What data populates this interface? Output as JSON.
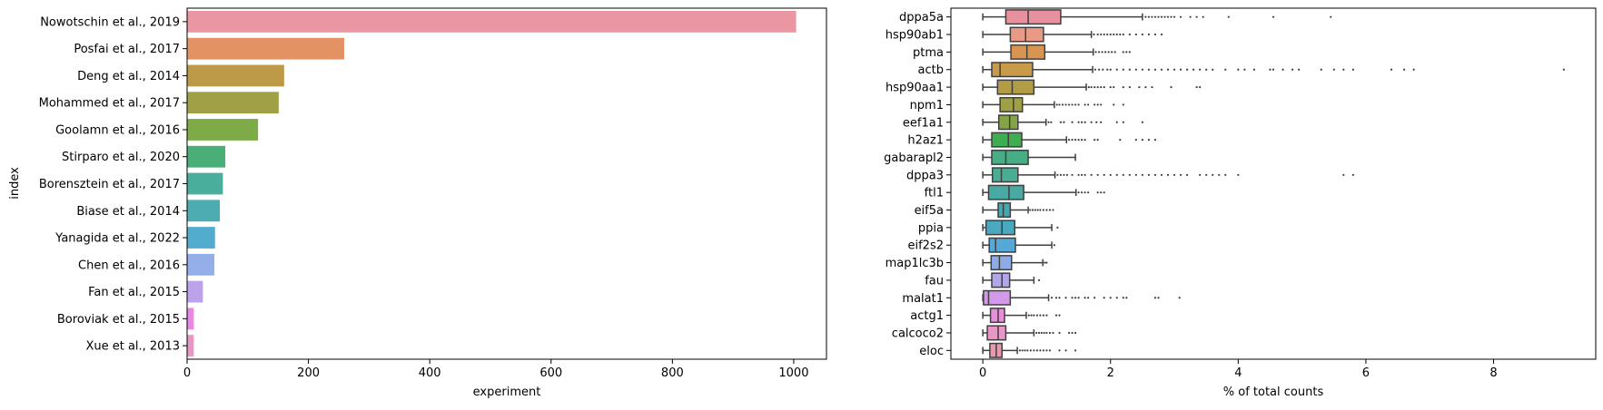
{
  "chart_data": [
    {
      "type": "bar",
      "orientation": "horizontal",
      "title": "",
      "xlabel": "experiment",
      "ylabel": "index",
      "xlim": [
        0,
        1054
      ],
      "xticks": [
        0,
        200,
        400,
        600,
        800,
        1000
      ],
      "grid": false,
      "categories": [
        "Nowotschin et al., 2019",
        "Posfai et al., 2017",
        "Deng et al., 2014",
        "Mohammed et al., 2017",
        "Goolamn et al., 2016",
        "Stirparo et al., 2020",
        "Borensztein et al., 2017",
        "Biase et al., 2014",
        "Yanagida et al., 2022",
        "Chen et al., 2016",
        "Fan et al., 2015",
        "Boroviak et al., 2015",
        "Xue et al., 2013"
      ],
      "values": [
        1004,
        259,
        160,
        151,
        117,
        63,
        59,
        54,
        46,
        45,
        26,
        11,
        11
      ],
      "colors": [
        "#ea96a3",
        "#e39363",
        "#bd9a48",
        "#a0a045",
        "#7cab48",
        "#4aae77",
        "#4aae9d",
        "#4cacb1",
        "#51acce",
        "#93aee8",
        "#bba2ea",
        "#e887e4",
        "#e797c6"
      ]
    },
    {
      "type": "boxplot",
      "orientation": "horizontal",
      "title": "",
      "xlabel": "% of total counts",
      "ylabel": "",
      "xlim": [
        -0.5,
        9.6
      ],
      "xticks": [
        0,
        2,
        4,
        6,
        8
      ],
      "grid": false,
      "categories": [
        "dppa5a",
        "hsp90ab1",
        "ptma",
        "actb",
        "hsp90aa1",
        "npm1",
        "eef1a1",
        "h2az1",
        "gabarapl2",
        "dppa3",
        "ftl1",
        "eif5a",
        "ppia",
        "eif2s2",
        "map1lc3b",
        "fau",
        "malat1",
        "actg1",
        "calcoco2",
        "eloc"
      ],
      "stats": [
        {
          "min": 0,
          "q1": 0.36,
          "median": 0.71,
          "q3": 1.22,
          "max": 2.5,
          "outliers": [
            2.55,
            2.6,
            2.65,
            2.7,
            2.75,
            2.8,
            2.85,
            2.9,
            2.95,
            3.0,
            3.1,
            3.25,
            3.35,
            3.45,
            3.85,
            4.55,
            5.45
          ]
        },
        {
          "min": 0,
          "q1": 0.43,
          "median": 0.67,
          "q3": 0.95,
          "max": 1.7,
          "outliers": [
            1.74,
            1.8,
            1.85,
            1.9,
            1.95,
            2.0,
            2.05,
            2.1,
            2.15,
            2.2,
            2.3,
            2.4,
            2.5,
            2.6,
            2.7,
            2.8
          ]
        },
        {
          "min": 0,
          "q1": 0.44,
          "median": 0.69,
          "q3": 0.97,
          "max": 1.73,
          "outliers": [
            1.77,
            1.82,
            1.87,
            1.92,
            1.97,
            2.02,
            2.07,
            2.2,
            2.25,
            2.3
          ]
        },
        {
          "min": 0,
          "q1": 0.14,
          "median": 0.27,
          "q3": 0.78,
          "max": 1.72,
          "outliers": [
            1.76,
            1.82,
            1.88,
            1.95,
            2.0,
            2.1,
            2.2,
            2.3,
            2.4,
            2.5,
            2.6,
            2.7,
            2.8,
            2.9,
            3.0,
            3.1,
            3.2,
            3.3,
            3.4,
            3.5,
            3.6,
            3.8,
            4.0,
            4.1,
            4.25,
            4.5,
            4.55,
            4.7,
            4.85,
            4.95,
            5.3,
            5.5,
            5.65,
            5.8,
            6.4,
            6.6,
            6.75,
            9.1
          ]
        },
        {
          "min": 0,
          "q1": 0.23,
          "median": 0.46,
          "q3": 0.8,
          "max": 1.62,
          "outliers": [
            1.66,
            1.7,
            1.75,
            1.8,
            1.85,
            1.9,
            2.0,
            2.05,
            2.2,
            2.3,
            2.45,
            2.55,
            2.65,
            2.95,
            3.35,
            3.4
          ]
        },
        {
          "min": 0,
          "q1": 0.27,
          "median": 0.48,
          "q3": 0.62,
          "max": 1.12,
          "outliers": [
            1.16,
            1.2,
            1.25,
            1.3,
            1.35,
            1.4,
            1.45,
            1.5,
            1.6,
            1.65,
            1.75,
            1.8,
            1.85,
            2.05,
            2.2
          ]
        },
        {
          "min": 0,
          "q1": 0.25,
          "median": 0.42,
          "q3": 0.55,
          "max": 0.99,
          "outliers": [
            1.03,
            1.07,
            1.22,
            1.27,
            1.4,
            1.5,
            1.55,
            1.6,
            1.7,
            1.78,
            1.85,
            2.1,
            2.2,
            2.5
          ]
        },
        {
          "min": 0,
          "q1": 0.14,
          "median": 0.4,
          "q3": 0.61,
          "max": 1.31,
          "outliers": [
            1.35,
            1.4,
            1.45,
            1.5,
            1.55,
            1.6,
            1.75,
            1.8,
            2.15,
            2.4,
            2.5,
            2.6,
            2.7
          ]
        },
        {
          "min": 0,
          "q1": 0.14,
          "median": 0.36,
          "q3": 0.71,
          "max": 1.45,
          "outliers": []
        },
        {
          "min": 0,
          "q1": 0.15,
          "median": 0.29,
          "q3": 0.55,
          "max": 1.13,
          "outliers": [
            1.17,
            1.22,
            1.27,
            1.32,
            1.4,
            1.5,
            1.55,
            1.6,
            1.7,
            1.8,
            1.9,
            2.0,
            2.1,
            2.2,
            2.3,
            2.4,
            2.5,
            2.6,
            2.7,
            2.8,
            2.9,
            3.0,
            3.1,
            3.2,
            3.4,
            3.5,
            3.6,
            3.7,
            3.8,
            4.0,
            5.65,
            5.8
          ]
        },
        {
          "min": 0,
          "q1": 0.09,
          "median": 0.41,
          "q3": 0.64,
          "max": 1.46,
          "outliers": [
            1.5,
            1.55,
            1.6,
            1.65,
            1.8,
            1.85,
            1.9
          ]
        },
        {
          "min": 0,
          "q1": 0.24,
          "median": 0.32,
          "q3": 0.43,
          "max": 0.71,
          "outliers": [
            0.74,
            0.78,
            0.82,
            0.86,
            0.9,
            0.95,
            1.0,
            1.05,
            1.1
          ]
        },
        {
          "min": 0,
          "q1": 0.05,
          "median": 0.3,
          "q3": 0.5,
          "max": 1.08,
          "outliers": [
            1.17
          ]
        },
        {
          "min": 0,
          "q1": 0.1,
          "median": 0.2,
          "q3": 0.51,
          "max": 1.08,
          "outliers": [
            1.12
          ]
        },
        {
          "min": 0,
          "q1": 0.13,
          "median": 0.26,
          "q3": 0.45,
          "max": 0.94,
          "outliers": [
            0.97,
            1.0
          ]
        },
        {
          "min": 0,
          "q1": 0.14,
          "median": 0.3,
          "q3": 0.42,
          "max": 0.8,
          "outliers": [
            0.88
          ]
        },
        {
          "min": 0,
          "q1": 0.01,
          "median": 0.09,
          "q3": 0.43,
          "max": 1.03,
          "outliers": [
            1.08,
            1.15,
            1.2,
            1.3,
            1.4,
            1.45,
            1.5,
            1.6,
            1.65,
            1.75,
            1.9,
            2.0,
            2.1,
            2.2,
            2.25,
            2.7,
            2.75,
            3.08
          ]
        },
        {
          "min": 0,
          "q1": 0.12,
          "median": 0.24,
          "q3": 0.34,
          "max": 0.68,
          "outliers": [
            0.72,
            0.76,
            0.8,
            0.85,
            0.9,
            0.95,
            1.0,
            1.15,
            1.2
          ]
        },
        {
          "min": 0,
          "q1": 0.07,
          "median": 0.24,
          "q3": 0.36,
          "max": 0.8,
          "outliers": [
            0.84,
            0.88,
            0.92,
            0.96,
            1.0,
            1.05,
            1.1,
            1.2,
            1.35,
            1.4,
            1.45
          ]
        },
        {
          "min": 0,
          "q1": 0.11,
          "median": 0.21,
          "q3": 0.3,
          "max": 0.54,
          "outliers": [
            0.58,
            0.62,
            0.66,
            0.7,
            0.75,
            0.8,
            0.85,
            0.9,
            0.95,
            1.0,
            1.05,
            1.2,
            1.3,
            1.45
          ]
        }
      ],
      "colors": [
        "#e8919e",
        "#e89a84",
        "#d9944f",
        "#c89a4a",
        "#b29c45",
        "#9da044",
        "#84a544",
        "#3fae51",
        "#46ad85",
        "#48ad93",
        "#48aaa2",
        "#46a8ae",
        "#49a9be",
        "#56a8d6",
        "#8fabe6",
        "#b2a5e8",
        "#d29ae8",
        "#e88fdb",
        "#e895c8",
        "#e899b0"
      ]
    }
  ]
}
